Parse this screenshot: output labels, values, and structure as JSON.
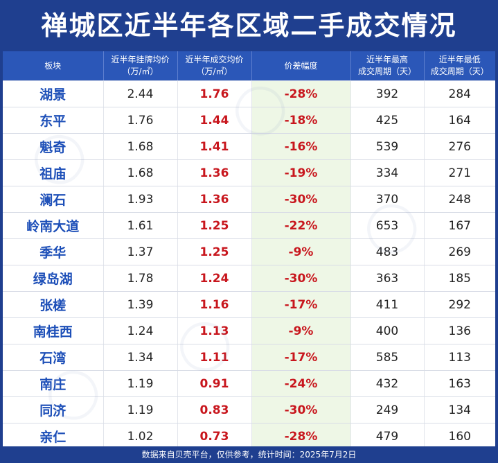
{
  "title": "禅城区近半年各区域二手成交情况",
  "headers": [
    {
      "line1": "板块",
      "line2": ""
    },
    {
      "line1": "近半年挂牌均价",
      "line2": "（万/㎡）"
    },
    {
      "line1": "近半年成交均价",
      "line2": "（万/㎡）"
    },
    {
      "line1": "价差幅度",
      "line2": ""
    },
    {
      "line1": "近半年最高",
      "line2": "成交周期（天）"
    },
    {
      "line1": "近半年最低",
      "line2": "成交周期（天）"
    }
  ],
  "rows": [
    {
      "area": "湖景",
      "listing": "2.44",
      "deal": "1.76",
      "diff": "-28%",
      "max_days": "392",
      "min_days": "284"
    },
    {
      "area": "东平",
      "listing": "1.76",
      "deal": "1.44",
      "diff": "-18%",
      "max_days": "425",
      "min_days": "164"
    },
    {
      "area": "魁奇",
      "listing": "1.68",
      "deal": "1.41",
      "diff": "-16%",
      "max_days": "539",
      "min_days": "276"
    },
    {
      "area": "祖庙",
      "listing": "1.68",
      "deal": "1.36",
      "diff": "-19%",
      "max_days": "334",
      "min_days": "271"
    },
    {
      "area": "澜石",
      "listing": "1.93",
      "deal": "1.36",
      "diff": "-30%",
      "max_days": "370",
      "min_days": "248"
    },
    {
      "area": "岭南大道",
      "listing": "1.61",
      "deal": "1.25",
      "diff": "-22%",
      "max_days": "653",
      "min_days": "167"
    },
    {
      "area": "季华",
      "listing": "1.37",
      "deal": "1.25",
      "diff": "-9%",
      "max_days": "483",
      "min_days": "269"
    },
    {
      "area": "绿岛湖",
      "listing": "1.78",
      "deal": "1.24",
      "diff": "-30%",
      "max_days": "363",
      "min_days": "185"
    },
    {
      "area": "张槎",
      "listing": "1.39",
      "deal": "1.16",
      "diff": "-17%",
      "max_days": "411",
      "min_days": "292"
    },
    {
      "area": "南桂西",
      "listing": "1.24",
      "deal": "1.13",
      "diff": "-9%",
      "max_days": "400",
      "min_days": "136"
    },
    {
      "area": "石湾",
      "listing": "1.34",
      "deal": "1.11",
      "diff": "-17%",
      "max_days": "585",
      "min_days": "113"
    },
    {
      "area": "南庄",
      "listing": "1.19",
      "deal": "0.91",
      "diff": "-24%",
      "max_days": "432",
      "min_days": "163"
    },
    {
      "area": "同济",
      "listing": "1.19",
      "deal": "0.83",
      "diff": "-30%",
      "max_days": "249",
      "min_days": "134"
    },
    {
      "area": "亲仁",
      "listing": "1.02",
      "deal": "0.73",
      "diff": "-28%",
      "max_days": "479",
      "min_days": "160"
    }
  ],
  "footer": "数据来自贝壳平台，仅供参考，统计时间：2025年7月2日",
  "colors": {
    "background": "#1f3f8f",
    "header": "#2b57b8",
    "area_name": "#1d4fb8",
    "highlight_red": "#c8161d",
    "diff_column_bg": "#eef7e6"
  }
}
